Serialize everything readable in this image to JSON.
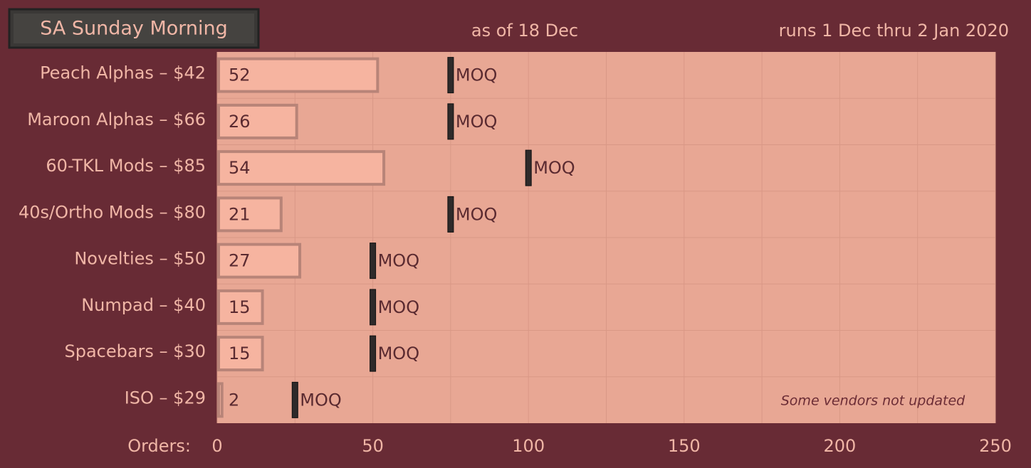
{
  "chart_data": {
    "type": "bar",
    "orientation": "horizontal",
    "title": "SA Sunday Morning",
    "subtitle": "as of 18 Dec",
    "date_range": "runs 1 Dec thru 2 Jan 2020",
    "x_label": "Orders:",
    "annotation": "Some vendors not updated",
    "categories": [
      "Peach Alphas – $42",
      "Maroon Alphas – $66",
      "60-TKL Mods – $85",
      "40s/Ortho Mods – $80",
      "Novelties – $50",
      "Numpad – $40",
      "Spacebars – $30",
      "ISO – $29"
    ],
    "values": [
      52,
      26,
      54,
      21,
      27,
      15,
      15,
      2
    ],
    "color": "#f6b4a0",
    "moq": {
      "label": "MOQ",
      "values": [
        75,
        75,
        100,
        75,
        50,
        50,
        50,
        25
      ],
      "color": "#2e2a2a"
    },
    "xlim": [
      0,
      250
    ],
    "xticks": [
      0,
      50,
      100,
      150,
      200,
      250
    ],
    "minor_xticks": [
      25,
      75,
      125,
      175,
      225
    ],
    "grid": true
  }
}
